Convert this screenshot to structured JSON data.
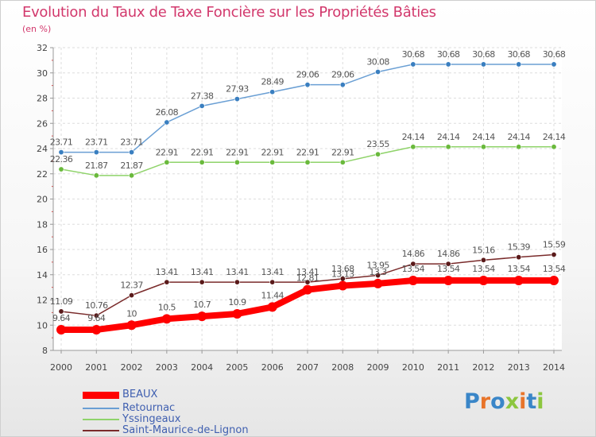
{
  "header": {
    "title": "Evolution du Taux de Taxe Foncière sur les Propriétés Bâties",
    "unit": "(en %)"
  },
  "chart_data": {
    "type": "line",
    "title": "Evolution du Taux de Taxe Foncière sur les Propriétés Bâties",
    "ylabel": "(en %)",
    "xlabel": "",
    "categories": [
      "2000",
      "2001",
      "2002",
      "2003",
      "2004",
      "2005",
      "2006",
      "2007",
      "2008",
      "2009",
      "2010",
      "2011",
      "2012",
      "2013",
      "2014"
    ],
    "ylim": [
      8,
      32
    ],
    "yticks": [
      8,
      10,
      12,
      14,
      16,
      18,
      20,
      22,
      24,
      26,
      28,
      30,
      32
    ],
    "grid": true,
    "legend_position": "bottom-left",
    "series": [
      {
        "name": "BEAUX",
        "color": "#ff0000",
        "values": [
          9.64,
          9.64,
          10,
          10.5,
          10.7,
          10.9,
          11.44,
          12.81,
          13.13,
          13.3,
          13.54,
          13.54,
          13.54,
          13.54,
          13.54
        ],
        "labels": [
          "9.64",
          "9.64",
          "10",
          "10.5",
          "10.7",
          "10.9",
          "11.44",
          "12.81",
          "13.13",
          "13.3",
          "13.54",
          "13.54",
          "13.54",
          "13.54",
          "13.54"
        ]
      },
      {
        "name": "Retournac",
        "color": "#6a9fd4",
        "values": [
          23.71,
          23.71,
          23.71,
          26.08,
          27.38,
          27.93,
          28.49,
          29.06,
          29.06,
          30.08,
          30.68,
          30.68,
          30.68,
          30.68,
          30.68
        ],
        "labels": [
          "23.71",
          "23.71",
          "23.71",
          "26.08",
          "27.38",
          "27.93",
          "28.49",
          "29.06",
          "29.06",
          "30.08",
          "30.68",
          "30.68",
          "30.68",
          "30.68",
          "30.68"
        ]
      },
      {
        "name": "Yssingeaux",
        "color": "#8fd36a",
        "values": [
          22.36,
          21.87,
          21.87,
          22.91,
          22.91,
          22.91,
          22.91,
          22.91,
          22.91,
          23.55,
          24.14,
          24.14,
          24.14,
          24.14,
          24.14
        ],
        "labels": [
          "22.36",
          "21.87",
          "21.87",
          "22.91",
          "22.91",
          "22.91",
          "22.91",
          "22.91",
          "22.91",
          "23.55",
          "24.14",
          "24.14",
          "24.14",
          "24.14",
          "24.14"
        ]
      },
      {
        "name": "Saint-Maurice-de-Lignon",
        "color": "#7a2b2b",
        "values": [
          11.09,
          10.76,
          12.37,
          13.41,
          13.41,
          13.41,
          13.41,
          13.41,
          13.68,
          13.95,
          14.86,
          14.86,
          15.16,
          15.39,
          15.59
        ],
        "labels": [
          "11.09",
          "10.76",
          "12.37",
          "13.41",
          "13.41",
          "13.41",
          "13.41",
          "13.41",
          "13.68",
          "13.95",
          "14.86",
          "14.86",
          "15.16",
          "15.39",
          "15.59"
        ]
      }
    ]
  },
  "legend": [
    {
      "label": "BEAUX",
      "color": "#ff0000"
    },
    {
      "label": "Retournac",
      "color": "#6a9fd4"
    },
    {
      "label": "Yssingeaux",
      "color": "#8fd36a"
    },
    {
      "label": "Saint-Maurice-de-Lignon",
      "color": "#7a2b2b"
    }
  ],
  "logo": {
    "text": "Proxiti",
    "colors": [
      "#3a86c8",
      "#e8742a",
      "#3a86c8",
      "#8cc63f",
      "#e8742a",
      "#3a86c8",
      "#8cc63f"
    ]
  }
}
